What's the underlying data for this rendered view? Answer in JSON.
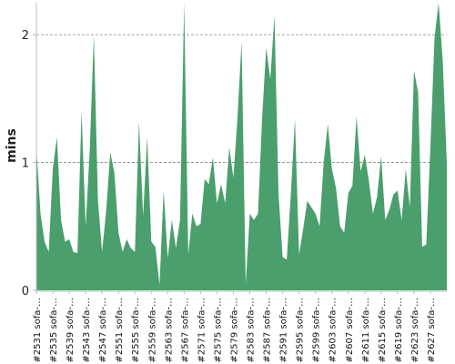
{
  "chart_data": {
    "type": "area",
    "ylabel": "mins",
    "ylim": [
      0,
      2.25
    ],
    "yticks": [
      0,
      1,
      2
    ],
    "grid": true,
    "colors": {
      "fill": "#4a9f6c",
      "grid": "#888888",
      "axis": "#bbbbbb"
    },
    "xtick_labels": [
      "#2531 sofa-…",
      "#2535 sofa-…",
      "#2539 sofa-…",
      "#2543 sofa-…",
      "#2547 sofa-…",
      "#2551 sofa-…",
      "#2555 sofa-…",
      "#2559 sofa-…",
      "#2563 sofa-…",
      "#2567 sofa-…",
      "#2571 sofa-…",
      "#2575 sofa-…",
      "#2579 sofa-…",
      "#2583 sofa-…",
      "#2587 sofa-…",
      "#2591 sofa-…",
      "#2595 sofa-…",
      "#2599 sofa-…",
      "#2603 sofa-…",
      "#2607 sofa-…",
      "#2611 sofa-…",
      "#2615 sofa-…",
      "#2619 sofa-…",
      "#2623 sofa-…",
      "#2627 sofa-…"
    ],
    "xtick_every": 4,
    "values": [
      1.12,
      0.6,
      0.38,
      0.3,
      0.95,
      1.2,
      0.55,
      0.38,
      0.4,
      0.3,
      0.29,
      1.4,
      0.5,
      1.1,
      2.0,
      0.7,
      0.3,
      0.62,
      1.08,
      0.92,
      0.45,
      0.3,
      0.4,
      0.33,
      0.3,
      1.32,
      0.58,
      1.2,
      0.38,
      0.34,
      0.04,
      0.78,
      0.25,
      0.55,
      0.33,
      0.55,
      2.25,
      0.28,
      0.6,
      0.5,
      0.52,
      0.87,
      0.83,
      1.04,
      0.68,
      0.83,
      0.68,
      1.12,
      0.88,
      1.35,
      1.95,
      0.05,
      0.6,
      0.55,
      0.6,
      1.35,
      1.9,
      1.65,
      2.15,
      0.75,
      0.26,
      0.24,
      0.75,
      1.34,
      0.28,
      0.48,
      0.7,
      0.65,
      0.6,
      0.5,
      1.0,
      1.3,
      0.95,
      0.8,
      0.5,
      0.45,
      0.76,
      0.82,
      1.36,
      0.93,
      1.06,
      0.86,
      0.6,
      0.73,
      1.05,
      0.55,
      0.63,
      0.75,
      0.78,
      0.55,
      0.95,
      0.65,
      1.72,
      1.55,
      0.34,
      0.36,
      1.12,
      1.97,
      2.25,
      1.8,
      1.0
    ]
  }
}
